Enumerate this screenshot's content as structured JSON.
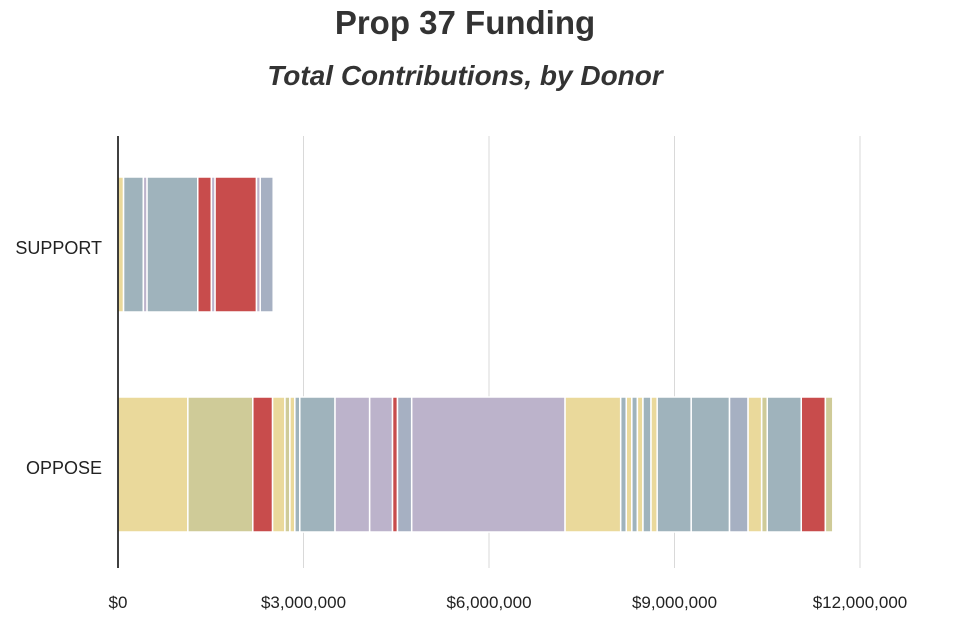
{
  "chart_data": {
    "type": "bar",
    "orientation": "horizontal",
    "stacked": true,
    "title": "Prop 37 Funding",
    "subtitle": "Total Contributions, by Donor",
    "xlabel": "",
    "ylabel": "",
    "xlim": [
      0,
      12000000
    ],
    "x_ticks": [
      {
        "value": 0,
        "label": "$0"
      },
      {
        "value": 3000000,
        "label": "$3,000,000"
      },
      {
        "value": 6000000,
        "label": "$6,000,000"
      },
      {
        "value": 9000000,
        "label": "$9,000,000"
      },
      {
        "value": 12000000,
        "label": "$12,000,000"
      }
    ],
    "grid": true,
    "categories": [
      "SUPPORT",
      "OPPOSE"
    ],
    "colors": {
      "yellow": "#ead99b",
      "olive": "#cfcb98",
      "red": "#c84c4c",
      "bluegray": "#9fb3bc",
      "lavender": "#bcb3cb",
      "slate": "#a6b0c2",
      "separator": "#ffffff",
      "axis": "#000000",
      "grid": "#d9d9d9"
    },
    "segments": {
      "SUPPORT": [
        {
          "value": 90000,
          "color": "yellow"
        },
        {
          "value": 320000,
          "color": "bluegray"
        },
        {
          "value": 60000,
          "color": "lavender"
        },
        {
          "value": 820000,
          "color": "bluegray"
        },
        {
          "value": 220000,
          "color": "red"
        },
        {
          "value": 60000,
          "color": "lavender"
        },
        {
          "value": 670000,
          "color": "red"
        },
        {
          "value": 60000,
          "color": "lavender"
        },
        {
          "value": 210000,
          "color": "slate"
        }
      ],
      "OPPOSE": [
        {
          "value": 1130000,
          "color": "yellow"
        },
        {
          "value": 1050000,
          "color": "olive"
        },
        {
          "value": 320000,
          "color": "red"
        },
        {
          "value": 200000,
          "color": "yellow"
        },
        {
          "value": 80000,
          "color": "olive"
        },
        {
          "value": 80000,
          "color": "yellow"
        },
        {
          "value": 80000,
          "color": "bluegray"
        },
        {
          "value": 570000,
          "color": "bluegray"
        },
        {
          "value": 560000,
          "color": "lavender"
        },
        {
          "value": 370000,
          "color": "lavender"
        },
        {
          "value": 80000,
          "color": "red"
        },
        {
          "value": 230000,
          "color": "slate"
        },
        {
          "value": 2480000,
          "color": "lavender"
        },
        {
          "value": 900000,
          "color": "yellow"
        },
        {
          "value": 90000,
          "color": "bluegray"
        },
        {
          "value": 90000,
          "color": "yellow"
        },
        {
          "value": 90000,
          "color": "bluegray"
        },
        {
          "value": 90000,
          "color": "yellow"
        },
        {
          "value": 130000,
          "color": "bluegray"
        },
        {
          "value": 100000,
          "color": "yellow"
        },
        {
          "value": 550000,
          "color": "bluegray"
        },
        {
          "value": 620000,
          "color": "bluegray"
        },
        {
          "value": 300000,
          "color": "slate"
        },
        {
          "value": 220000,
          "color": "yellow"
        },
        {
          "value": 90000,
          "color": "olive"
        },
        {
          "value": 550000,
          "color": "bluegray"
        },
        {
          "value": 390000,
          "color": "red"
        },
        {
          "value": 120000,
          "color": "olive"
        }
      ]
    }
  }
}
